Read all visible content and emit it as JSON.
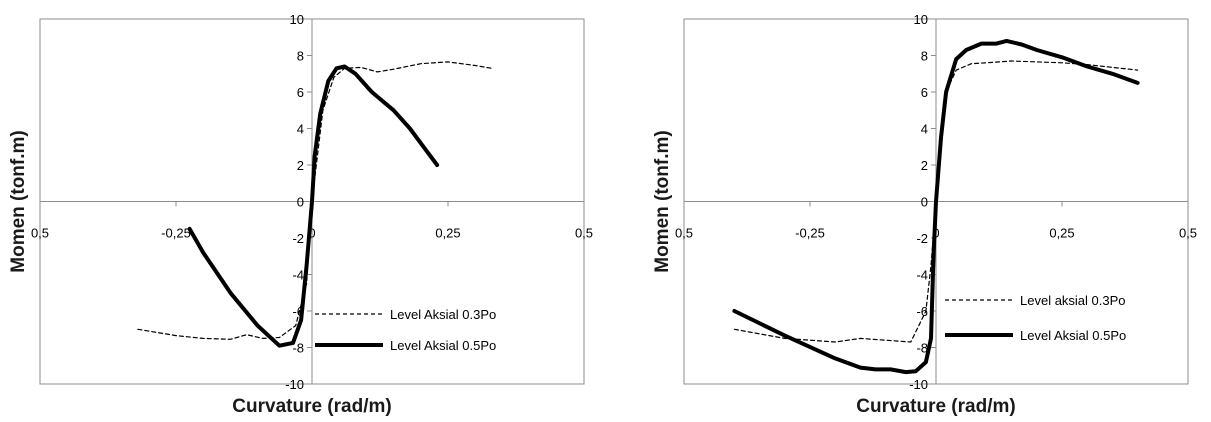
{
  "chart_data": [
    {
      "type": "line",
      "title": "",
      "xlabel": "Curvature (rad/m)",
      "ylabel": "Momen (tonf.m)",
      "xlim": [
        -0.5,
        0.5
      ],
      "ylim": [
        -10,
        10
      ],
      "x_ticks": [
        "0,5",
        "-0,25",
        "0",
        "0,25",
        "0,5"
      ],
      "y_ticks": [
        "10",
        "8",
        "6",
        "4",
        "2",
        "0",
        "-2",
        "-4",
        "-6",
        "-8",
        "-10"
      ],
      "grid": false,
      "legend_position": "bottom-right",
      "series": [
        {
          "name": "Level Aksial 0.3Po",
          "style": "dashed",
          "color": "#000000",
          "points": [
            [
              -0.32,
              -7.0
            ],
            [
              -0.25,
              -7.35
            ],
            [
              -0.2,
              -7.5
            ],
            [
              -0.15,
              -7.55
            ],
            [
              -0.12,
              -7.3
            ],
            [
              -0.09,
              -7.5
            ],
            [
              -0.06,
              -7.45
            ],
            [
              -0.03,
              -6.8
            ],
            [
              -0.01,
              -4.5
            ],
            [
              0.0,
              0.0
            ],
            [
              0.01,
              2.5
            ],
            [
              0.02,
              5.0
            ],
            [
              0.04,
              6.8
            ],
            [
              0.06,
              7.3
            ],
            [
              0.09,
              7.35
            ],
            [
              0.12,
              7.1
            ],
            [
              0.15,
              7.25
            ],
            [
              0.2,
              7.55
            ],
            [
              0.25,
              7.65
            ],
            [
              0.3,
              7.45
            ],
            [
              0.33,
              7.3
            ]
          ]
        },
        {
          "name": "Level Aksial 0.5Po",
          "style": "solid",
          "color": "#000000",
          "points": [
            [
              -0.225,
              -1.5
            ],
            [
              -0.2,
              -2.8
            ],
            [
              -0.15,
              -5.0
            ],
            [
              -0.1,
              -6.8
            ],
            [
              -0.06,
              -7.9
            ],
            [
              -0.035,
              -7.75
            ],
            [
              -0.02,
              -6.5
            ],
            [
              -0.01,
              -3.5
            ],
            [
              0.0,
              0.0
            ],
            [
              0.005,
              2.5
            ],
            [
              0.015,
              4.8
            ],
            [
              0.03,
              6.6
            ],
            [
              0.045,
              7.3
            ],
            [
              0.06,
              7.4
            ],
            [
              0.08,
              7.0
            ],
            [
              0.11,
              6.0
            ],
            [
              0.15,
              5.0
            ],
            [
              0.18,
              4.0
            ],
            [
              0.21,
              2.8
            ],
            [
              0.23,
              2.0
            ]
          ]
        }
      ]
    },
    {
      "type": "line",
      "title": "",
      "xlabel": "Curvature (rad/m)",
      "ylabel": "Momen (tonf.m)",
      "xlim": [
        -0.5,
        0.5
      ],
      "ylim": [
        -10,
        10
      ],
      "x_ticks": [
        "0,5",
        "-0,25",
        "0",
        "0,25",
        "0,5"
      ],
      "y_ticks": [
        "10",
        "8",
        "6",
        "4",
        "2",
        "0",
        "-2",
        "-4",
        "-6",
        "-8",
        "-10"
      ],
      "grid": false,
      "legend_position": "bottom-right",
      "series": [
        {
          "name": "Level aksial 0.3Po",
          "style": "dashed",
          "color": "#000000",
          "points": [
            [
              -0.4,
              -7.0
            ],
            [
              -0.3,
              -7.5
            ],
            [
              -0.2,
              -7.7
            ],
            [
              -0.15,
              -7.5
            ],
            [
              -0.1,
              -7.6
            ],
            [
              -0.05,
              -7.7
            ],
            [
              -0.02,
              -6.0
            ],
            [
              -0.01,
              -3.5
            ],
            [
              0.0,
              0.0
            ],
            [
              0.01,
              3.5
            ],
            [
              0.02,
              6.0
            ],
            [
              0.04,
              7.2
            ],
            [
              0.07,
              7.55
            ],
            [
              0.1,
              7.6
            ],
            [
              0.15,
              7.7
            ],
            [
              0.2,
              7.65
            ],
            [
              0.25,
              7.6
            ],
            [
              0.3,
              7.5
            ],
            [
              0.35,
              7.35
            ],
            [
              0.4,
              7.2
            ]
          ]
        },
        {
          "name": "Level Aksial 0.5Po",
          "style": "solid",
          "color": "#000000",
          "points": [
            [
              -0.4,
              -6.0
            ],
            [
              -0.3,
              -7.35
            ],
            [
              -0.2,
              -8.6
            ],
            [
              -0.15,
              -9.1
            ],
            [
              -0.12,
              -9.2
            ],
            [
              -0.09,
              -9.2
            ],
            [
              -0.06,
              -9.35
            ],
            [
              -0.04,
              -9.3
            ],
            [
              -0.02,
              -8.8
            ],
            [
              -0.01,
              -7.5
            ],
            [
              -0.005,
              -3.0
            ],
            [
              0.0,
              0.0
            ],
            [
              0.01,
              3.5
            ],
            [
              0.02,
              6.0
            ],
            [
              0.04,
              7.8
            ],
            [
              0.06,
              8.3
            ],
            [
              0.09,
              8.65
            ],
            [
              0.12,
              8.65
            ],
            [
              0.14,
              8.8
            ],
            [
              0.17,
              8.6
            ],
            [
              0.2,
              8.3
            ],
            [
              0.25,
              7.9
            ],
            [
              0.3,
              7.4
            ],
            [
              0.35,
              7.0
            ],
            [
              0.4,
              6.5
            ]
          ]
        }
      ]
    }
  ]
}
